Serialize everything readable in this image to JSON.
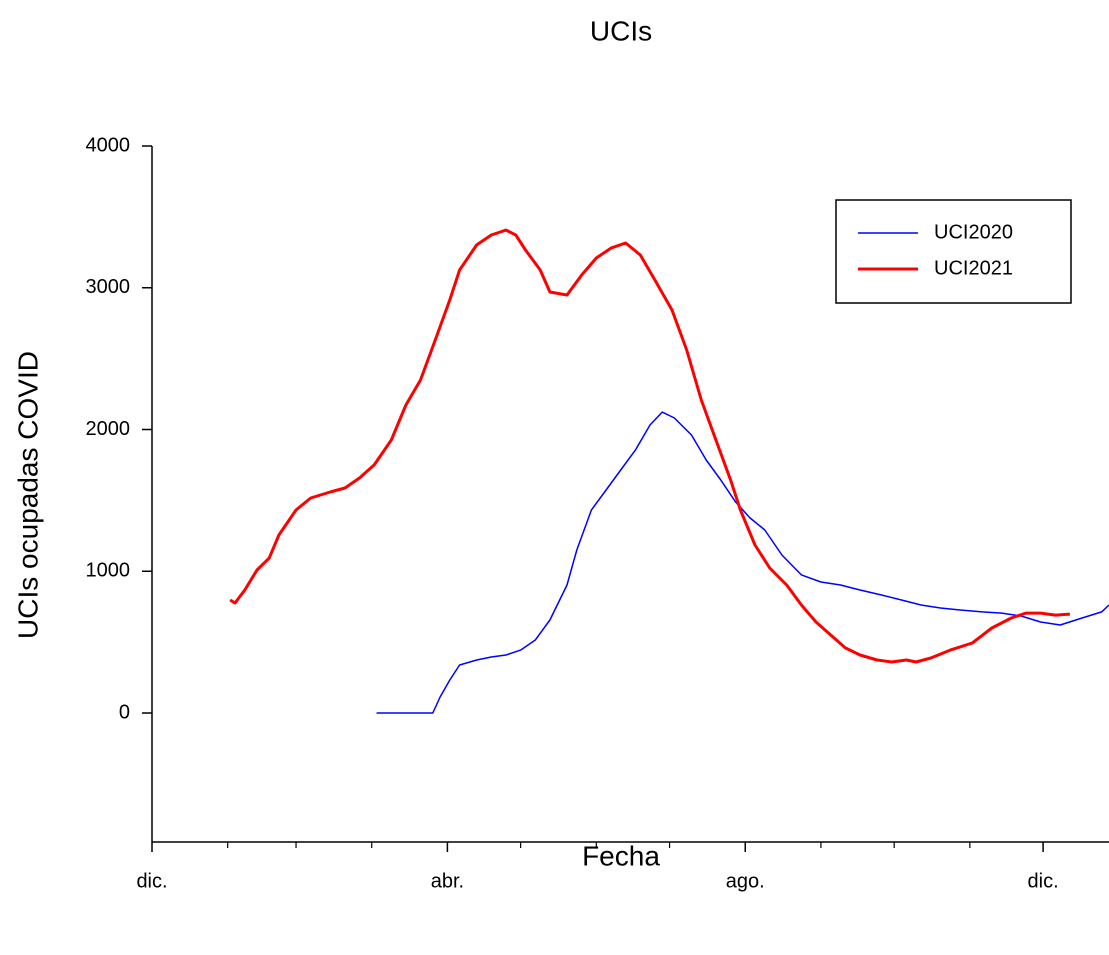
{
  "chart_data": {
    "type": "line",
    "title": "UCIs",
    "xlabel": "Fecha",
    "ylabel": "UCIs ocupadas COVID",
    "xlim": [
      0,
      392
    ],
    "ylim": [
      -910,
      4000
    ],
    "xticks": [
      {
        "value": 0,
        "label": "dic."
      },
      {
        "value": 121,
        "label": "abr."
      },
      {
        "value": 243,
        "label": "ago."
      },
      {
        "value": 365,
        "label": "dic."
      }
    ],
    "xminorticks": [
      31,
      59,
      90,
      151,
      182,
      212,
      274,
      304,
      335
    ],
    "yticks": [
      0,
      1000,
      2000,
      3000,
      4000
    ],
    "legend": "upper-right",
    "series": [
      {
        "name": "UCI2020",
        "color": "#0000ff",
        "width": 1.5,
        "x": [
          92,
          115,
          118,
          122,
          126,
          133,
          139,
          145,
          151,
          157,
          163,
          170,
          174,
          180,
          186,
          192,
          198,
          204,
          209,
          214,
          221,
          227,
          233,
          239,
          245,
          251,
          258,
          266,
          274,
          282,
          290,
          299,
          307,
          315,
          323,
          331,
          340,
          348,
          356,
          364,
          372,
          381,
          389,
          392
        ],
        "values": [
          0,
          0,
          113,
          233,
          339,
          374,
          395,
          409,
          444,
          515,
          656,
          903,
          1150,
          1432,
          1573,
          1714,
          1855,
          2032,
          2123,
          2081,
          1961,
          1785,
          1644,
          1489,
          1376,
          1291,
          1115,
          974,
          924,
          903,
          868,
          832,
          797,
          762,
          741,
          727,
          713,
          705,
          684,
          642,
          621,
          670,
          713,
          762
        ]
      },
      {
        "name": "UCI2021",
        "color": "#ff0000",
        "width": 3,
        "x": [
          32,
          34,
          38,
          43,
          48,
          52,
          59,
          65,
          73,
          79,
          85,
          91,
          98,
          104,
          110,
          116,
          122,
          126,
          133,
          139,
          145,
          149,
          153,
          159,
          163,
          170,
          176,
          182,
          188,
          194,
          200,
          206,
          213,
          219,
          225,
          231,
          237,
          241,
          247,
          253,
          260,
          266,
          272,
          278,
          284,
          290,
          297,
          303,
          309,
          313,
          319,
          327,
          336,
          344,
          352,
          358,
          364,
          370,
          376
        ],
        "values": [
          797,
          776,
          868,
          1009,
          1093,
          1256,
          1432,
          1517,
          1559,
          1587,
          1658,
          1750,
          1926,
          2173,
          2349,
          2631,
          2914,
          3125,
          3302,
          3372,
          3407,
          3372,
          3266,
          3125,
          2970,
          2949,
          3090,
          3210,
          3280,
          3316,
          3231,
          3055,
          2843,
          2561,
          2208,
          1926,
          1644,
          1432,
          1185,
          1023,
          903,
          762,
          642,
          550,
          459,
          409,
          374,
          360,
          374,
          360,
          388,
          444,
          494,
          600,
          670,
          705,
          705,
          691,
          698
        ]
      }
    ]
  }
}
